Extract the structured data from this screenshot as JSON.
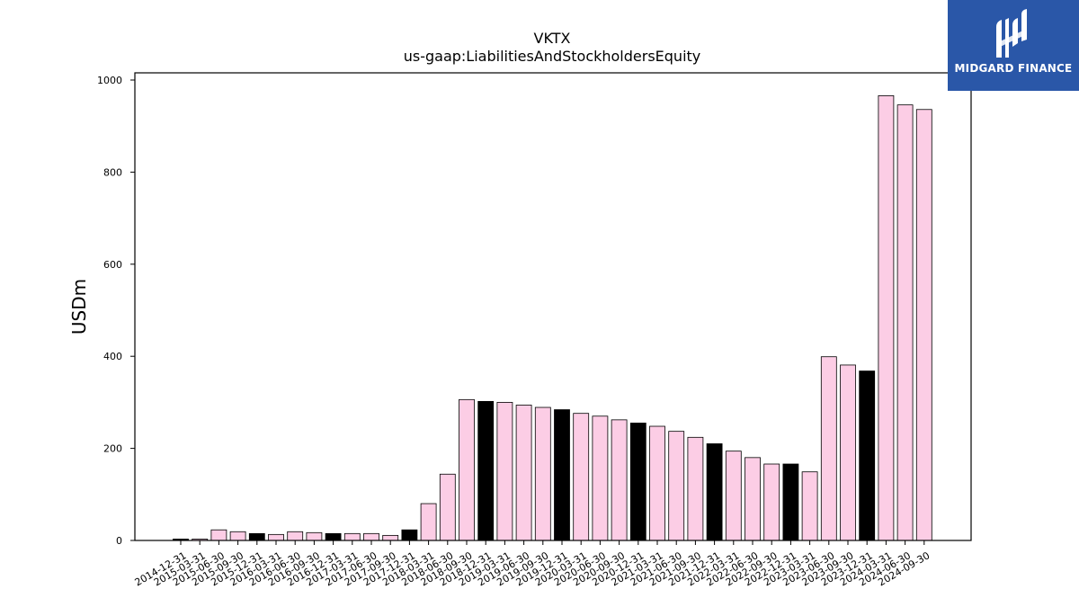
{
  "brand": {
    "name": "MIDGARD FINANCE",
    "background_color": "#2a57a8",
    "icon": "midgard-logo-icon"
  },
  "chart_data": {
    "type": "bar",
    "title": "VKTX",
    "subtitle": "us-gaap:LiabilitiesAndStockholdersEquity",
    "xlabel": "",
    "ylabel": "USDm",
    "ylim": [
      0,
      1000
    ],
    "yticks": [
      0,
      200,
      400,
      600,
      800,
      1000
    ],
    "grid": false,
    "legend": "none",
    "colors": {
      "quarter_bar": "#fccde5",
      "year_end_bar": "#000000",
      "bar_edge": "#000000"
    },
    "categories": [
      "2014-12-31",
      "2015-03-31",
      "2015-06-30",
      "2015-09-30",
      "2015-12-31",
      "2016-03-31",
      "2016-06-30",
      "2016-09-30",
      "2016-12-31",
      "2017-03-31",
      "2017-06-30",
      "2017-09-30",
      "2017-12-31",
      "2018-03-31",
      "2018-06-30",
      "2018-09-30",
      "2018-12-31",
      "2019-03-31",
      "2019-06-30",
      "2019-09-30",
      "2019-12-31",
      "2020-03-31",
      "2020-06-30",
      "2020-09-30",
      "2020-12-31",
      "2021-03-31",
      "2021-06-30",
      "2021-09-30",
      "2021-12-31",
      "2022-03-31",
      "2022-06-30",
      "2022-09-30",
      "2022-12-31",
      "2023-03-31",
      "2023-06-30",
      "2023-09-30",
      "2023-12-31",
      "2024-03-31",
      "2024-06-30",
      "2024-09-30"
    ],
    "values": [
      3,
      3,
      23,
      19,
      15,
      13,
      19,
      17,
      15,
      15,
      15,
      11,
      23,
      80,
      144,
      306,
      302,
      300,
      294,
      289,
      284,
      276,
      270,
      262,
      255,
      248,
      237,
      224,
      210,
      194,
      180,
      166,
      166,
      149,
      399,
      381,
      368,
      966,
      946,
      936
    ],
    "year_end": [
      true,
      false,
      false,
      false,
      true,
      false,
      false,
      false,
      true,
      false,
      false,
      false,
      true,
      false,
      false,
      false,
      true,
      false,
      false,
      false,
      true,
      false,
      false,
      false,
      true,
      false,
      false,
      false,
      true,
      false,
      false,
      false,
      true,
      false,
      false,
      false,
      true,
      false,
      false,
      false
    ]
  }
}
